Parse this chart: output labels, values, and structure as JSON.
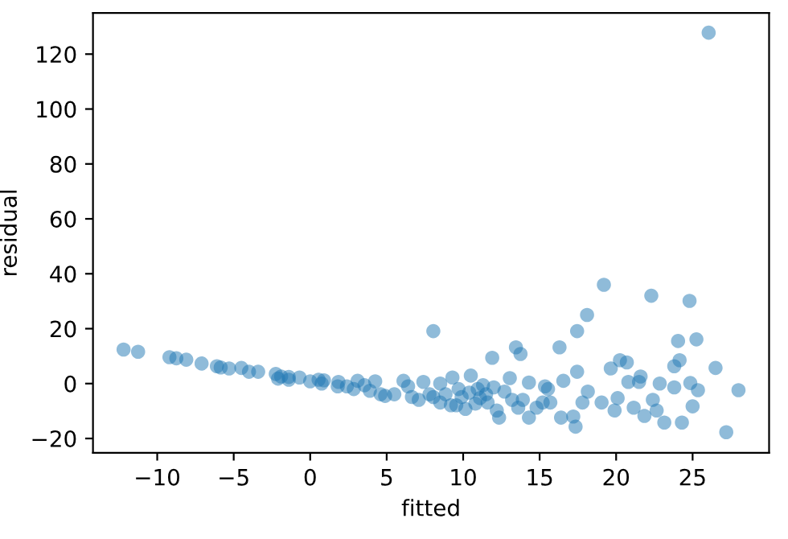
{
  "chart_data": {
    "type": "scatter",
    "xlabel": "fitted",
    "ylabel": "residual",
    "xlim": [
      -14.2,
      30.0
    ],
    "ylim": [
      -25.2,
      135
    ],
    "xticks": [
      -10,
      -5,
      0,
      5,
      10,
      15,
      20,
      25
    ],
    "yticks": [
      -20,
      0,
      20,
      40,
      60,
      80,
      100,
      120
    ],
    "grid": false,
    "legend": false,
    "marker": "circle",
    "series": [
      {
        "color": "#1f77b4",
        "x": [
          -12.2,
          -11.25,
          -9.2,
          -8.75,
          -8.1,
          -7.1,
          -6.1,
          -5.85,
          -5.3,
          -4.5,
          -4.0,
          -3.4,
          -2.25,
          -1.9,
          -1.4,
          -0.7,
          0,
          0.55,
          0.9,
          1.85,
          2.4,
          3.1,
          3.9,
          4.25,
          4.9,
          5.5,
          6.1,
          6.65,
          7.4,
          8.05,
          8.05,
          8.5,
          9.3,
          9.55,
          10.15,
          10.5,
          11.1,
          11.3,
          11.9,
          12.2,
          12.35,
          13.05,
          13.45,
          13.75,
          14.3,
          14.3,
          14.8,
          15.35,
          15.7,
          16.3,
          16.4,
          16.55,
          17.2,
          17.35,
          17.45,
          17.45,
          17.8,
          18.1,
          18.15,
          19.05,
          19.2,
          19.65,
          19.9,
          20.1,
          20.25,
          20.7,
          20.8,
          21.15,
          21.5,
          21.6,
          21.85,
          22.3,
          22.4,
          22.65,
          22.85,
          23.15,
          23.8,
          23.8,
          24.05,
          24.15,
          24.3,
          24.8,
          24.85,
          25,
          25.25,
          25.35,
          26.05,
          26.5,
          27.2,
          28.0,
          6.4,
          7.1,
          7.8,
          8.5,
          8.85,
          9.2,
          9.7,
          9.9,
          10.4,
          10.8,
          10.95,
          11.5,
          11.6,
          12.0,
          12.7,
          13.2,
          13.6,
          13.9,
          15.2,
          15.55,
          1.8,
          2.85,
          3.55,
          4.6,
          -1.4,
          0.75,
          -2.1
        ],
        "values": [
          12.4,
          11.6,
          9.6,
          9.2,
          8.7,
          7.3,
          6.3,
          5.9,
          5.5,
          5.7,
          4.3,
          4.3,
          3.5,
          2.6,
          2.4,
          2.2,
          0.8,
          1.4,
          1.2,
          0.6,
          -1,
          1,
          -2.6,
          0.8,
          -4.5,
          -3.9,
          1,
          -4.9,
          0.6,
          19.1,
          -4.9,
          0,
          2.2,
          -7.9,
          -9.2,
          2.9,
          -5.3,
          -0.6,
          9.4,
          -9.8,
          -12.4,
          2,
          13.2,
          10.8,
          0.4,
          -12.4,
          -8.8,
          -1,
          -6.9,
          13.2,
          -12.4,
          1,
          -12,
          -15.7,
          19.1,
          4.3,
          -6.9,
          25,
          -2.9,
          -6.9,
          36,
          5.5,
          -9.8,
          -5.3,
          8.5,
          7.7,
          0.6,
          -8.8,
          0.6,
          2.6,
          -11.8,
          32,
          -5.9,
          -9.8,
          0,
          -14.2,
          6.3,
          -1.4,
          15.5,
          8.5,
          -14.2,
          30.1,
          0.2,
          -8.3,
          16.1,
          -2.4,
          127.8,
          5.7,
          -17.7,
          -2.4,
          -1,
          -5.9,
          -3.9,
          -6.9,
          -3.9,
          -7.9,
          -2,
          -4.9,
          -3.3,
          -7.3,
          -2,
          -3.9,
          -6.9,
          -1.4,
          -2.9,
          -5.9,
          -8.8,
          -5.9,
          -6.9,
          -2,
          -1,
          -2,
          -0.6,
          -3.9,
          1.4,
          0,
          1.8
        ]
      }
    ]
  }
}
